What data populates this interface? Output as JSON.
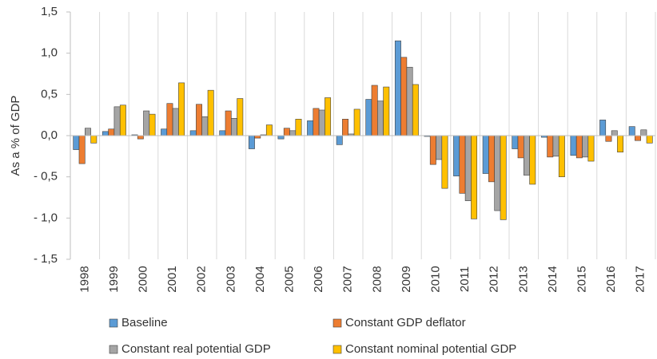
{
  "chart_data": {
    "type": "bar",
    "y_label": "As a % of GDP",
    "categories": [
      "1998",
      "1999",
      "2000",
      "2001",
      "2002",
      "2003",
      "2004",
      "2005",
      "2006",
      "2007",
      "2008",
      "2009",
      "2010",
      "2011",
      "2012",
      "2013",
      "2014",
      "2015",
      "2016",
      "2017"
    ],
    "series": [
      {
        "name": "Baseline",
        "color": "#5b9bd5",
        "values": [
          -0.17,
          0.05,
          0.01,
          0.08,
          0.06,
          0.06,
          -0.16,
          -0.04,
          0.18,
          -0.11,
          0.44,
          1.15,
          -0.01,
          -0.49,
          -0.46,
          -0.16,
          -0.02,
          -0.24,
          0.19,
          0.11
        ]
      },
      {
        "name": "Constant GDP deflator",
        "color": "#ed7d31",
        "values": [
          -0.34,
          0.08,
          -0.04,
          0.39,
          0.38,
          0.3,
          -0.03,
          0.09,
          0.33,
          0.2,
          0.61,
          0.95,
          -0.35,
          -0.7,
          -0.56,
          -0.27,
          -0.26,
          -0.27,
          -0.07,
          -0.06
        ]
      },
      {
        "name": "Constant real potential GDP",
        "color": "#a5a5a5",
        "values": [
          0.09,
          0.35,
          0.3,
          0.33,
          0.23,
          0.21,
          0.01,
          0.06,
          0.31,
          0.02,
          0.42,
          0.83,
          -0.29,
          -0.79,
          -0.91,
          -0.48,
          -0.25,
          -0.26,
          0.06,
          0.07
        ]
      },
      {
        "name": "Constant nominal potential GDP",
        "color": "#ffc000",
        "values": [
          -0.09,
          0.37,
          0.26,
          0.64,
          0.55,
          0.45,
          0.13,
          0.2,
          0.46,
          0.32,
          0.59,
          0.62,
          -0.64,
          -1.01,
          -1.02,
          -0.59,
          -0.5,
          -0.31,
          -0.2,
          -0.09
        ]
      }
    ],
    "ylim": [
      -1.5,
      1.5
    ],
    "yticks": [
      {
        "value": -1.5,
        "label": "- 1,5"
      },
      {
        "value": -1.0,
        "label": "- 1,0"
      },
      {
        "value": -0.5,
        "label": "- 0,5"
      },
      {
        "value": 0,
        "label": "0,0"
      },
      {
        "value": 0.5,
        "label": "0,5"
      },
      {
        "value": 1.0,
        "label": "1,0"
      },
      {
        "value": 1.5,
        "label": "1,5"
      }
    ],
    "grid": false
  }
}
